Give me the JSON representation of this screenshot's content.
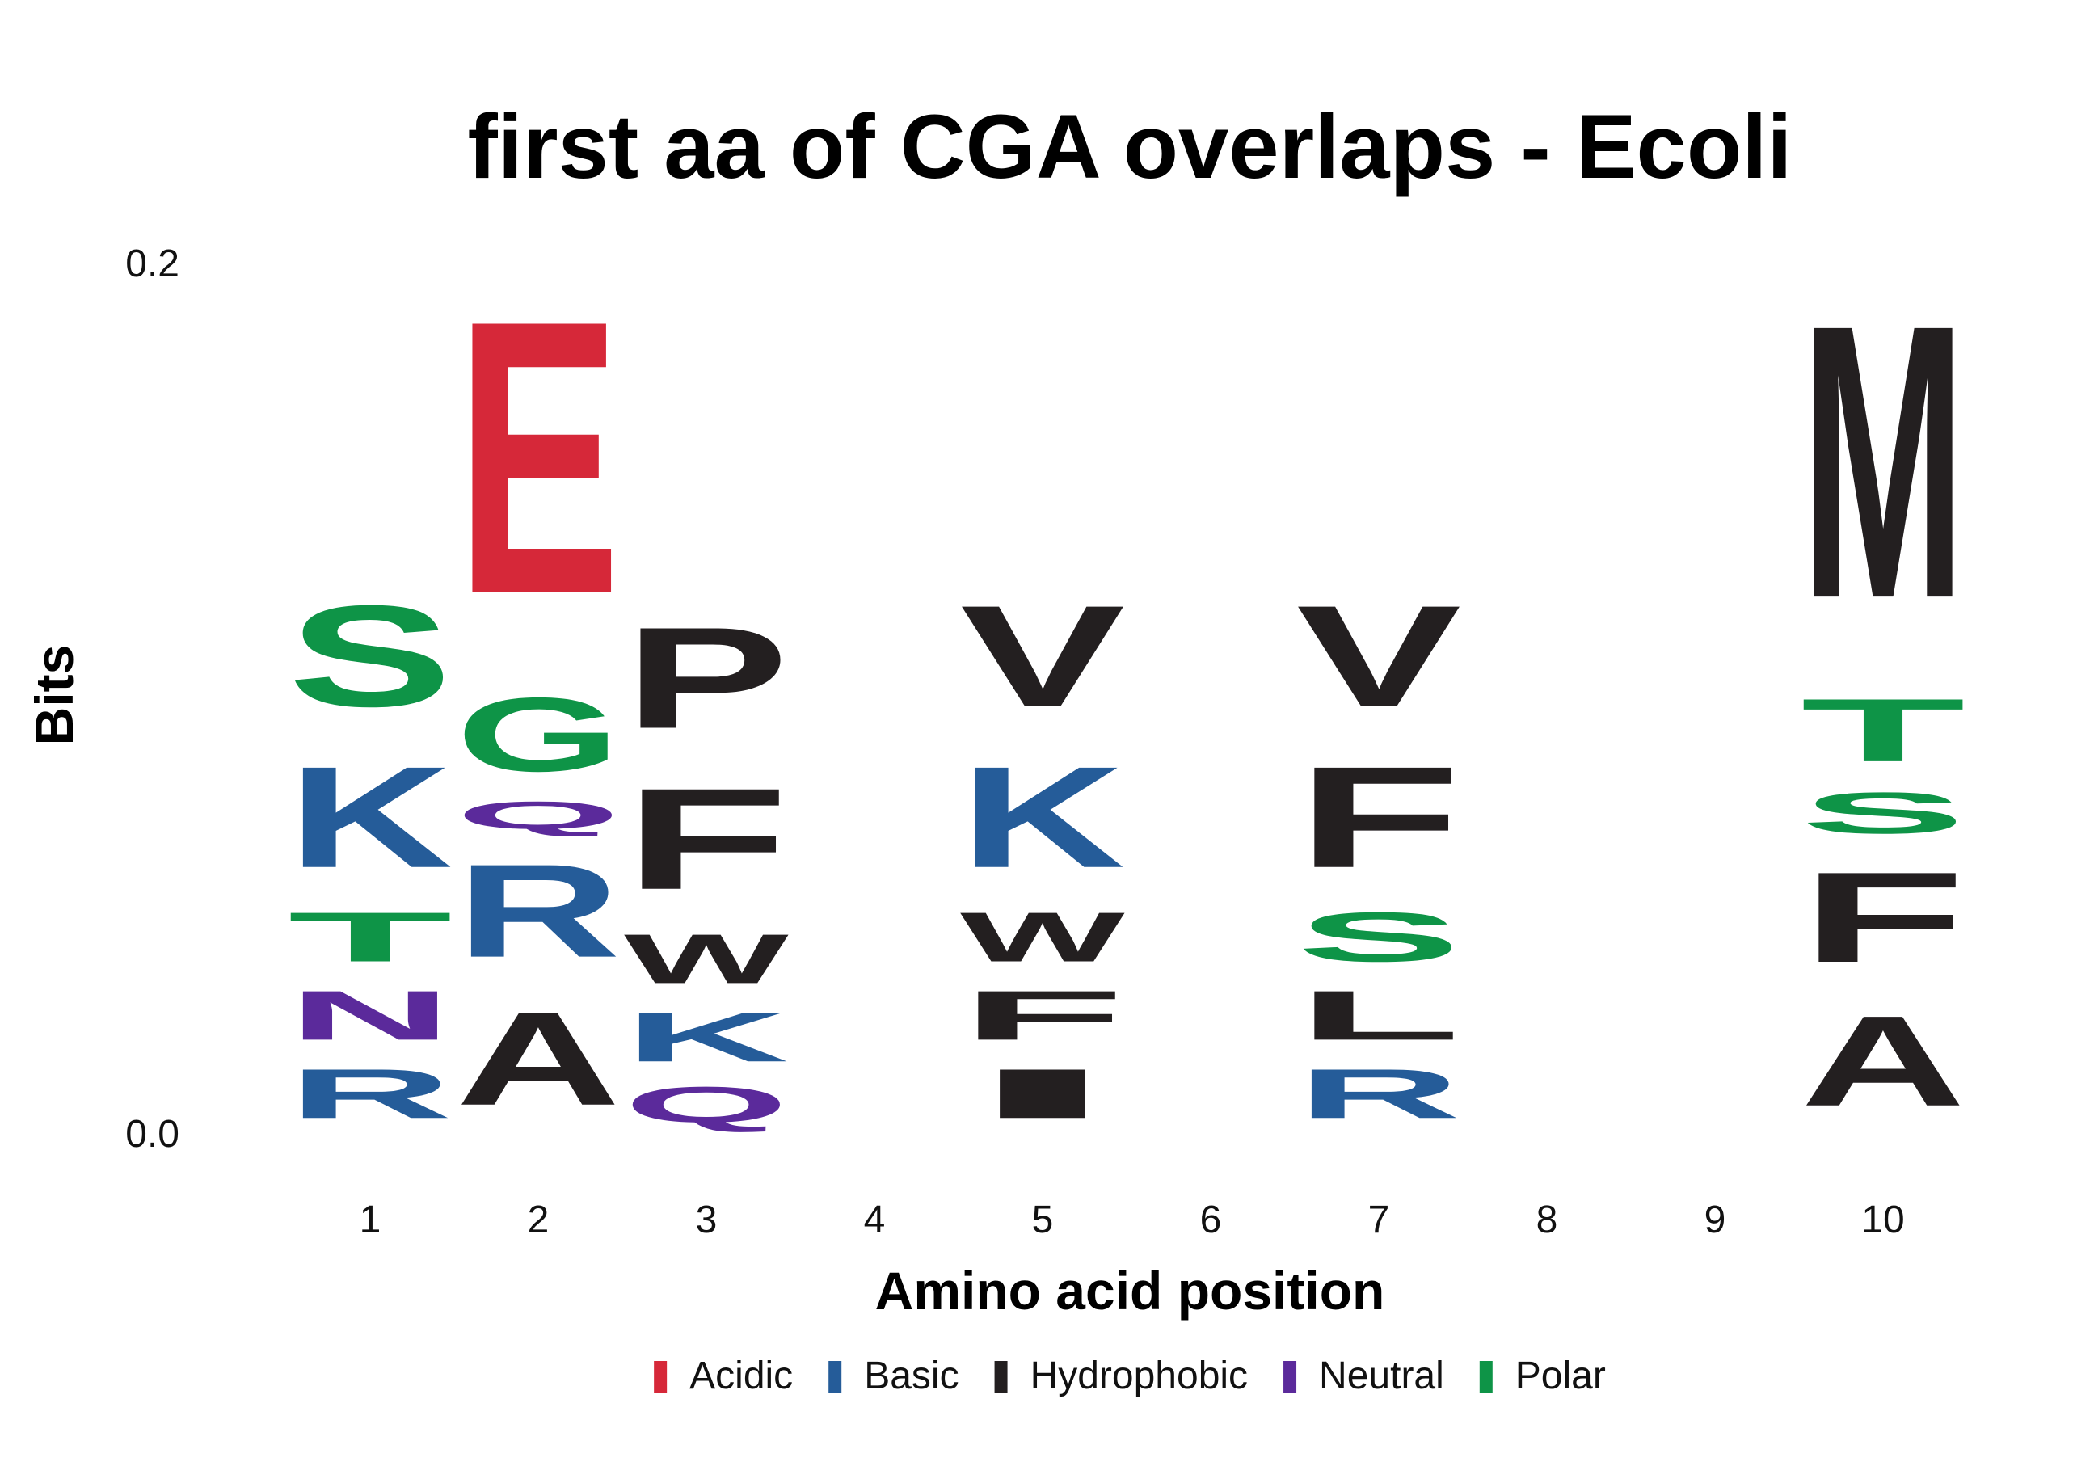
{
  "chart_data": {
    "type": "sequence-logo",
    "title": "first aa of CGA overlaps - Ecoli",
    "xlabel": "Amino acid position",
    "ylabel": "Bits",
    "ylim": [
      0,
      0.235
    ],
    "y_ticks": [
      {
        "value": 0.0,
        "label": "0.0"
      },
      {
        "value": 0.2,
        "label": "0.2"
      }
    ],
    "categories": [
      "1",
      "2",
      "3",
      "4",
      "5",
      "6",
      "7",
      "8",
      "9",
      "10"
    ],
    "grid": false,
    "legend_position": "bottom",
    "legend": [
      {
        "name": "Acidic",
        "color": "#d62839"
      },
      {
        "name": "Basic",
        "color": "#255c99"
      },
      {
        "name": "Hydrophobic",
        "color": "#231f20"
      },
      {
        "name": "Neutral",
        "color": "#5b2a9b"
      },
      {
        "name": "Polar",
        "color": "#0e9447"
      }
    ],
    "positions": [
      {
        "position": "1",
        "letters": [
          {
            "letter": "R",
            "group": "Basic",
            "bits": 0.018
          },
          {
            "letter": "N",
            "group": "Neutral",
            "bits": 0.018
          },
          {
            "letter": "T",
            "group": "Polar",
            "bits": 0.018
          },
          {
            "letter": "K",
            "group": "Basic",
            "bits": 0.037
          },
          {
            "letter": "S",
            "group": "Polar",
            "bits": 0.037
          }
        ]
      },
      {
        "position": "2",
        "letters": [
          {
            "letter": "A",
            "group": "Hydrophobic",
            "bits": 0.034
          },
          {
            "letter": "R",
            "group": "Basic",
            "bits": 0.034
          },
          {
            "letter": "Q",
            "group": "Neutral",
            "bits": 0.01
          },
          {
            "letter": "G",
            "group": "Polar",
            "bits": 0.027
          },
          {
            "letter": "E",
            "group": "Acidic",
            "bits": 0.1
          }
        ]
      },
      {
        "position": "3",
        "letters": [
          {
            "letter": "Q",
            "group": "Neutral",
            "bits": 0.013
          },
          {
            "letter": "K",
            "group": "Basic",
            "bits": 0.018
          },
          {
            "letter": "W",
            "group": "Hydrophobic",
            "bits": 0.018
          },
          {
            "letter": "F",
            "group": "Hydrophobic",
            "bits": 0.037
          },
          {
            "letter": "P",
            "group": "Hydrophobic",
            "bits": 0.037
          }
        ]
      },
      {
        "position": "4",
        "letters": []
      },
      {
        "position": "5",
        "letters": [
          {
            "letter": "I",
            "group": "Hydrophobic",
            "bits": 0.018
          },
          {
            "letter": "F",
            "group": "Hydrophobic",
            "bits": 0.018
          },
          {
            "letter": "W",
            "group": "Hydrophobic",
            "bits": 0.018
          },
          {
            "letter": "K",
            "group": "Basic",
            "bits": 0.037
          },
          {
            "letter": "V",
            "group": "Hydrophobic",
            "bits": 0.037
          }
        ]
      },
      {
        "position": "6",
        "letters": []
      },
      {
        "position": "7",
        "letters": [
          {
            "letter": "R",
            "group": "Basic",
            "bits": 0.018
          },
          {
            "letter": "L",
            "group": "Hydrophobic",
            "bits": 0.018
          },
          {
            "letter": "S",
            "group": "Polar",
            "bits": 0.018
          },
          {
            "letter": "F",
            "group": "Hydrophobic",
            "bits": 0.037
          },
          {
            "letter": "V",
            "group": "Hydrophobic",
            "bits": 0.037
          }
        ]
      },
      {
        "position": "8",
        "letters": []
      },
      {
        "position": "9",
        "letters": []
      },
      {
        "position": "10",
        "letters": [
          {
            "letter": "A",
            "group": "Hydrophobic",
            "bits": 0.033
          },
          {
            "letter": "F",
            "group": "Hydrophobic",
            "bits": 0.033
          },
          {
            "letter": "S",
            "group": "Polar",
            "bits": 0.015
          },
          {
            "letter": "T",
            "group": "Polar",
            "bits": 0.023
          },
          {
            "letter": "M",
            "group": "Hydrophobic",
            "bits": 0.1
          }
        ]
      }
    ]
  }
}
